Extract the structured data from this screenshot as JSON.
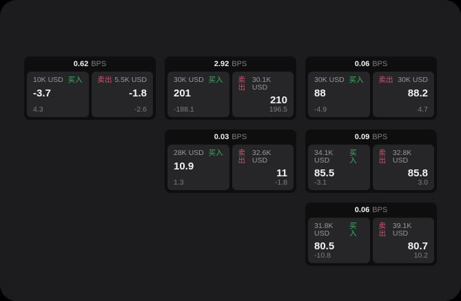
{
  "theme": {
    "panel_bg": "#1c1c1e",
    "card_bg": "#0e0e0f",
    "tile_bg": "#262628",
    "text_primary": "#f2f2f2",
    "text_secondary": "#98989d",
    "text_muted": "#7f7f84",
    "buy_color": "#3fae63",
    "sell_color": "#c9566b"
  },
  "labels": {
    "bps_unit": "BPS",
    "buy": "买入",
    "sell": "卖出"
  },
  "cards": [
    {
      "bps": "0.62",
      "grid": {
        "row": 1,
        "col": 1
      },
      "buy": {
        "amount": "10K USD",
        "value": "-3.7",
        "delta": "4.3"
      },
      "sell": {
        "amount": "5.5K USD",
        "value": "-1.8",
        "delta": "-2.6"
      }
    },
    {
      "bps": "2.92",
      "grid": {
        "row": 1,
        "col": 2
      },
      "buy": {
        "amount": "30K USD",
        "value": "201",
        "delta": "-188.1"
      },
      "sell": {
        "amount": "30.1K USD",
        "value": "210",
        "delta": "196.5"
      }
    },
    {
      "bps": "0.06",
      "grid": {
        "row": 1,
        "col": 3
      },
      "buy": {
        "amount": "30K USD",
        "value": "88",
        "delta": "-4.9"
      },
      "sell": {
        "amount": "30K USD",
        "value": "88.2",
        "delta": "4.7"
      }
    },
    {
      "bps": "0.03",
      "grid": {
        "row": 2,
        "col": 2
      },
      "buy": {
        "amount": "28K USD",
        "value": "10.9",
        "delta": "1.3"
      },
      "sell": {
        "amount": "32.6K USD",
        "value": "11",
        "delta": "-1.8"
      }
    },
    {
      "bps": "0.09",
      "grid": {
        "row": 2,
        "col": 3
      },
      "buy": {
        "amount": "34.1K USD",
        "value": "85.5",
        "delta": "-3.1"
      },
      "sell": {
        "amount": "32.8K USD",
        "value": "85.8",
        "delta": "3.0"
      }
    },
    {
      "bps": "0.06",
      "grid": {
        "row": 3,
        "col": 3
      },
      "buy": {
        "amount": "31.8K USD",
        "value": "80.5",
        "delta": "-10.8"
      },
      "sell": {
        "amount": "39.1K USD",
        "value": "80.7",
        "delta": "10.2"
      }
    }
  ]
}
